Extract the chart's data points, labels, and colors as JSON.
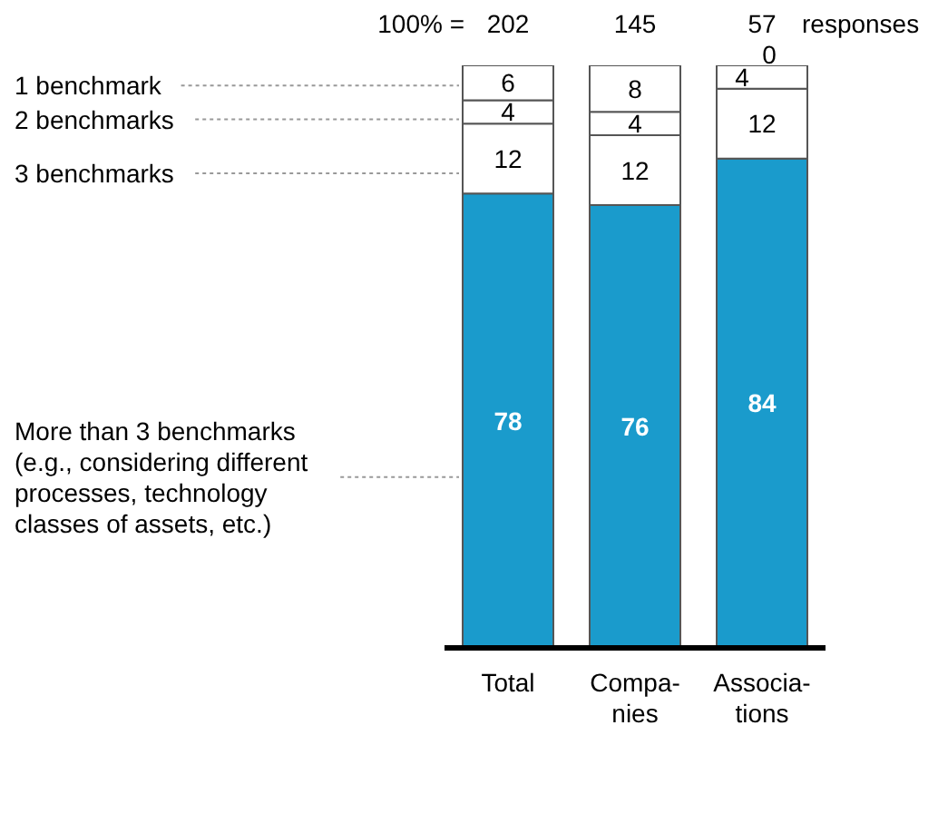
{
  "chart_data": {
    "type": "bar",
    "stacked": true,
    "categories": [
      "Total",
      "Compa-\nnies",
      "Associa-\ntions"
    ],
    "series": [
      {
        "name": "More than 3 benchmarks\n(e.g., considering different\nprocesses, technology\nclasses of assets, etc.)",
        "color": "#1a9bcc",
        "values": [
          78,
          76,
          84
        ]
      },
      {
        "name": "3 benchmarks",
        "color": "#ffffff",
        "values": [
          12,
          12,
          12
        ]
      },
      {
        "name": "2 benchmarks",
        "color": "#ffffff",
        "values": [
          4,
          4,
          4
        ]
      },
      {
        "name": "1 benchmark",
        "color": "#ffffff",
        "values": [
          6,
          8,
          0
        ]
      }
    ],
    "ylim": [
      0,
      100
    ],
    "data_labels": true,
    "annotations": [
      "100% =",
      "responses",
      {
        "text": "202",
        "x": "Total",
        "y": 100
      },
      {
        "text": "145",
        "x": "Compa-\nnies",
        "y": 100
      },
      {
        "text": "57",
        "x": "Associa-\ntions",
        "y": 100
      }
    ],
    "tick_labels": "x"
  }
}
